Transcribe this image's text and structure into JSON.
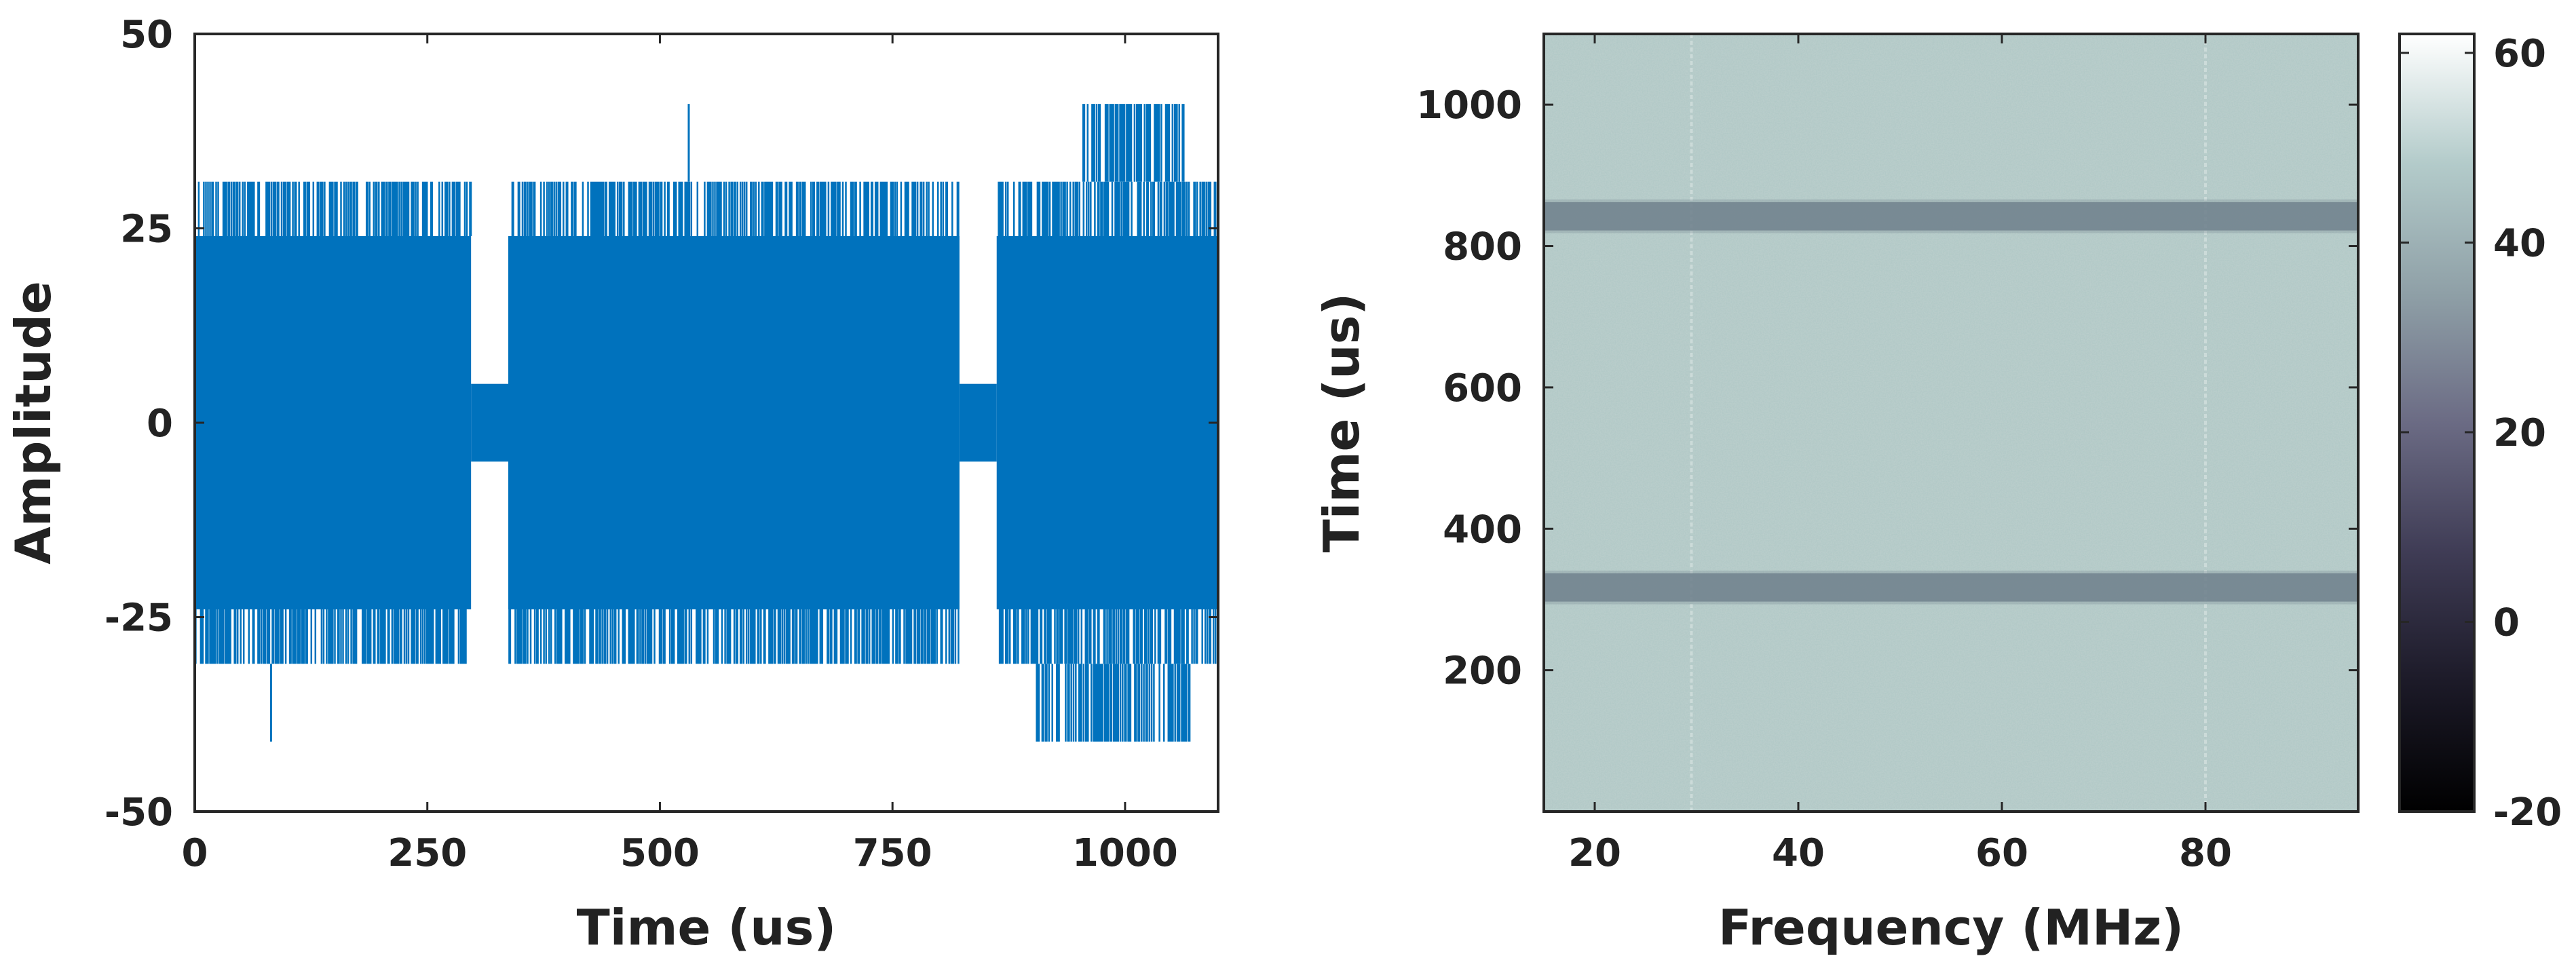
{
  "chart_data": [
    {
      "type": "line",
      "xlabel": "Time (us)",
      "ylabel": "Amplitude",
      "xlim": [
        0,
        1100
      ],
      "ylim": [
        -50,
        50
      ],
      "xticks": [
        0,
        250,
        500,
        750,
        1000
      ],
      "xtick_labels": [
        "0",
        "250",
        "500",
        "750",
        "1000"
      ],
      "yticks": [
        50,
        25,
        0,
        -25,
        -50
      ],
      "ytick_labels": [
        "50",
        "25",
        "0",
        "-25",
        "-50"
      ],
      "grid": false,
      "legend": "none",
      "series": [
        {
          "color": "#0072BD",
          "segments": [
            {
              "x_start": 0,
              "x_end": 297,
              "envelope_low": -24,
              "envelope_high": 24,
              "spike_low": -31,
              "spike_high": 31
            },
            {
              "x_start": 297,
              "x_end": 337,
              "envelope_low": -5,
              "envelope_high": 5,
              "spike_low": -5,
              "spike_high": 5
            },
            {
              "x_start": 337,
              "x_end": 822,
              "envelope_low": -24,
              "envelope_high": 24,
              "spike_low": -31,
              "spike_high": 31
            },
            {
              "x_start": 822,
              "x_end": 862,
              "envelope_low": -5,
              "envelope_high": 5,
              "spike_low": -5,
              "spike_high": 5
            },
            {
              "x_start": 862,
              "x_end": 1100,
              "envelope_low": -24,
              "envelope_high": 24,
              "spike_low": -31,
              "spike_high": 31
            }
          ],
          "outliers": [
            {
              "x": 531,
              "y": 41
            },
            {
              "x": 82,
              "y": -41
            }
          ],
          "clusters": [
            {
              "x_start": 955,
              "x_end": 1065,
              "y": 41
            },
            {
              "x_start": 905,
              "x_end": 1070,
              "y": -41
            }
          ]
        }
      ]
    },
    {
      "type": "heatmap",
      "xlabel": "Frequency (MHz)",
      "ylabel": "Time (us)",
      "xlim": [
        15,
        95
      ],
      "ylim": [
        0,
        1100
      ],
      "xticks": [
        20,
        40,
        60,
        80
      ],
      "xtick_labels": [
        "20",
        "40",
        "60",
        "80"
      ],
      "yticks": [
        200,
        400,
        600,
        800,
        1000
      ],
      "ytick_labels": [
        "200",
        "400",
        "600",
        "800",
        "1000"
      ],
      "background_level": 40,
      "bands": [
        {
          "time_center": 317,
          "time_width": 40,
          "level": 28
        },
        {
          "time_center": 842,
          "time_width": 40,
          "level": 28
        }
      ],
      "bright_lines_freq": [
        29.5,
        80
      ],
      "colorbar": {
        "range": [
          -20,
          62
        ],
        "ticks": [
          60,
          40,
          20,
          0,
          -20
        ],
        "tick_labels": [
          "60",
          "40",
          "20",
          "0",
          "-20"
        ],
        "colormap": [
          "#000000",
          "#1c1a28",
          "#3f3c55",
          "#6b6b84",
          "#8fa0a7",
          "#b3cbca",
          "#ffffff"
        ]
      }
    }
  ]
}
